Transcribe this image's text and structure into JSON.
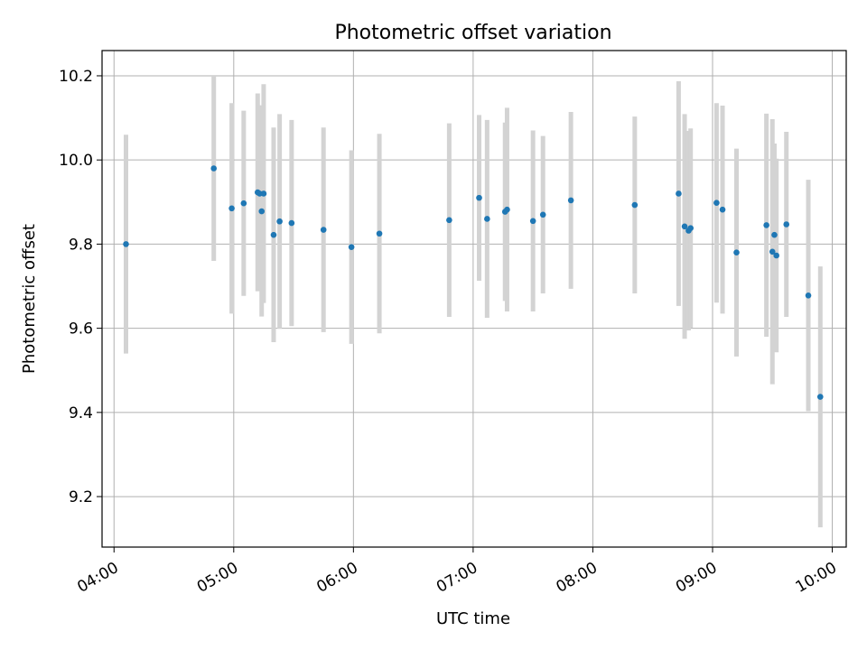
{
  "chart_data": {
    "type": "scatter",
    "title": "Photometric offset variation",
    "xlabel": "UTC time",
    "ylabel": "Photometric offset",
    "xlim": [
      "03:54",
      "10:07"
    ],
    "ylim": [
      9.08,
      10.26
    ],
    "grid": true,
    "legend": "none",
    "x_ticks": [
      "04:00",
      "05:00",
      "06:00",
      "07:00",
      "08:00",
      "09:00",
      "10:00"
    ],
    "y_ticks": [
      9.2,
      9.4,
      9.6,
      9.8,
      10.0,
      10.2
    ],
    "point_color": "#1f77b4",
    "errorbar_color": "#d3d3d3",
    "points": [
      {
        "time": "04:06",
        "y": 9.8,
        "err": 0.26
      },
      {
        "time": "04:50",
        "y": 9.98,
        "err": 0.22
      },
      {
        "time": "04:59",
        "y": 9.885,
        "err": 0.25
      },
      {
        "time": "05:05",
        "y": 9.897,
        "err": 0.22
      },
      {
        "time": "05:12",
        "y": 9.923,
        "err": 0.235
      },
      {
        "time": "05:13",
        "y": 9.92,
        "err": 0.21
      },
      {
        "time": "05:14",
        "y": 9.878,
        "err": 0.25
      },
      {
        "time": "05:15",
        "y": 9.92,
        "err": 0.26
      },
      {
        "time": "05:20",
        "y": 9.822,
        "err": 0.255
      },
      {
        "time": "05:23",
        "y": 9.854,
        "err": 0.255
      },
      {
        "time": "05:29",
        "y": 9.85,
        "err": 0.245
      },
      {
        "time": "05:45",
        "y": 9.834,
        "err": 0.243
      },
      {
        "time": "05:59",
        "y": 9.793,
        "err": 0.23
      },
      {
        "time": "06:13",
        "y": 9.825,
        "err": 0.237
      },
      {
        "time": "06:48",
        "y": 9.857,
        "err": 0.23
      },
      {
        "time": "07:03",
        "y": 9.91,
        "err": 0.197
      },
      {
        "time": "07:07",
        "y": 9.86,
        "err": 0.235
      },
      {
        "time": "07:16",
        "y": 9.877,
        "err": 0.212
      },
      {
        "time": "07:17",
        "y": 9.882,
        "err": 0.242
      },
      {
        "time": "07:30",
        "y": 9.855,
        "err": 0.215
      },
      {
        "time": "07:35",
        "y": 9.87,
        "err": 0.187
      },
      {
        "time": "07:49",
        "y": 9.904,
        "err": 0.21
      },
      {
        "time": "08:21",
        "y": 9.893,
        "err": 0.21
      },
      {
        "time": "08:43",
        "y": 9.92,
        "err": 0.267
      },
      {
        "time": "08:46",
        "y": 9.842,
        "err": 0.267
      },
      {
        "time": "08:48",
        "y": 9.832,
        "err": 0.237
      },
      {
        "time": "08:49",
        "y": 9.838,
        "err": 0.237
      },
      {
        "time": "09:02",
        "y": 9.898,
        "err": 0.237
      },
      {
        "time": "09:05",
        "y": 9.882,
        "err": 0.247
      },
      {
        "time": "09:12",
        "y": 9.78,
        "err": 0.247
      },
      {
        "time": "09:27",
        "y": 9.845,
        "err": 0.265
      },
      {
        "time": "09:30",
        "y": 9.782,
        "err": 0.315
      },
      {
        "time": "09:31",
        "y": 9.822,
        "err": 0.217
      },
      {
        "time": "09:32",
        "y": 9.773,
        "err": 0.23
      },
      {
        "time": "09:37",
        "y": 9.847,
        "err": 0.22
      },
      {
        "time": "09:48",
        "y": 9.678,
        "err": 0.275
      },
      {
        "time": "09:54",
        "y": 9.437,
        "err": 0.31
      }
    ]
  }
}
